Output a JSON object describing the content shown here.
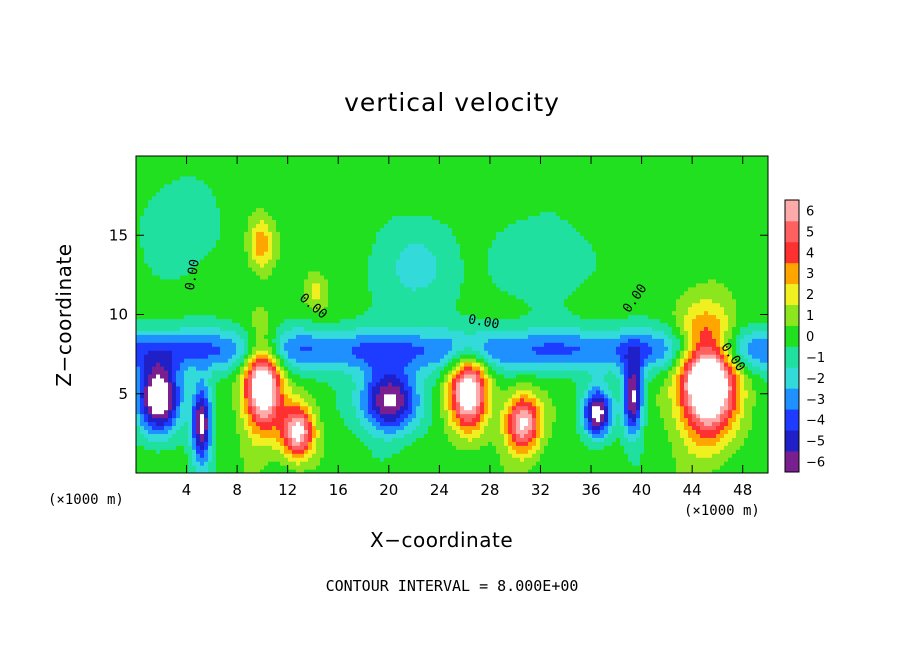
{
  "chart_data": {
    "type": "heatmap",
    "title": "vertical velocity",
    "xlabel": "X−coordinate",
    "ylabel": "Z−coordinate",
    "x_unit_left": "(×1000 m)",
    "x_unit_right": "(×1000 m)",
    "footer": "CONTOUR INTERVAL = 8.000E+00",
    "xlim": [
      0,
      50
    ],
    "ylim": [
      0,
      20
    ],
    "x_ticks": [
      4,
      8,
      12,
      16,
      20,
      24,
      28,
      32,
      36,
      40,
      44,
      48
    ],
    "x_tick_labels": [
      "4",
      "8",
      "12",
      "16",
      "20",
      "24",
      "28",
      "32",
      "36",
      "40",
      "44",
      "48"
    ],
    "y_ticks": [
      5,
      10,
      15
    ],
    "y_tick_labels": [
      "5",
      "10",
      "15"
    ],
    "colorbar": {
      "levels": [
        -6,
        -5,
        -4,
        -3,
        -2,
        -1,
        0,
        1,
        2,
        3,
        4,
        5,
        6
      ],
      "labels": [
        "−6",
        "−5",
        "−4",
        "−3",
        "−2",
        "−1",
        "0",
        "1",
        "2",
        "3",
        "4",
        "5",
        "6"
      ],
      "colors": [
        "#7a1f8f",
        "#2020c8",
        "#1e3cff",
        "#1e90ff",
        "#33dada",
        "#20e0a0",
        "#20e020",
        "#8ce61e",
        "#f0f020",
        "#ffa500",
        "#ff3030",
        "#ff6060",
        "#ffaaaa"
      ]
    },
    "contour_labels": [
      {
        "text": "0.00",
        "x": 4.5,
        "y": 12.5,
        "angle": -80
      },
      {
        "text": "0.00",
        "x": 14.0,
        "y": 10.5,
        "angle": 40
      },
      {
        "text": "0.00",
        "x": 27.5,
        "y": 9.5,
        "angle": 10
      },
      {
        "text": "0.00",
        "x": 39.5,
        "y": 11.0,
        "angle": -55
      },
      {
        "text": "0.00",
        "x": 47.2,
        "y": 7.3,
        "angle": 55
      }
    ],
    "updrafts": [
      {
        "x": 10.0,
        "z": 5.6,
        "sx": 1.5,
        "sz": 2.9,
        "amp": 9
      },
      {
        "x": 12.8,
        "z": 2.6,
        "sx": 1.3,
        "sz": 1.7,
        "amp": 7
      },
      {
        "x": 26.3,
        "z": 5.2,
        "sx": 1.5,
        "sz": 2.4,
        "amp": 8
      },
      {
        "x": 30.6,
        "z": 3.2,
        "sx": 1.4,
        "sz": 1.8,
        "amp": 7
      },
      {
        "x": 45.2,
        "z": 6.0,
        "sx": 2.2,
        "sz": 3.5,
        "amp": 11
      },
      {
        "x": 9.9,
        "z": 14.5,
        "sx": 1.0,
        "sz": 1.6,
        "amp": 3.3
      },
      {
        "x": 14.3,
        "z": 11.5,
        "sx": 0.9,
        "sz": 1.2,
        "amp": 1.8
      }
    ],
    "downdrafts": [
      {
        "x": 1.8,
        "z": 4.8,
        "sx": 1.7,
        "sz": 2.2,
        "amp": 8
      },
      {
        "x": 5.2,
        "z": 3.2,
        "sx": 0.8,
        "sz": 2.4,
        "amp": 7
      },
      {
        "x": 20.0,
        "z": 4.6,
        "sx": 2.2,
        "sz": 2.0,
        "amp": 7
      },
      {
        "x": 36.5,
        "z": 3.8,
        "sx": 1.1,
        "sz": 1.5,
        "amp": 7
      },
      {
        "x": 39.3,
        "z": 4.8,
        "sx": 0.8,
        "sz": 2.3,
        "amp": 7
      },
      {
        "x": 3.5,
        "z": 15.5,
        "sx": 3.0,
        "sz": 3.0,
        "amp": 1.5
      },
      {
        "x": 22.0,
        "z": 13.0,
        "sx": 3.5,
        "sz": 3.0,
        "amp": 1.8
      },
      {
        "x": 32.0,
        "z": 13.5,
        "sx": 4.0,
        "sz": 3.0,
        "amp": 1.2
      }
    ],
    "low_band": {
      "z": 7.8,
      "sz": 1.4,
      "amp": 3.5
    }
  }
}
